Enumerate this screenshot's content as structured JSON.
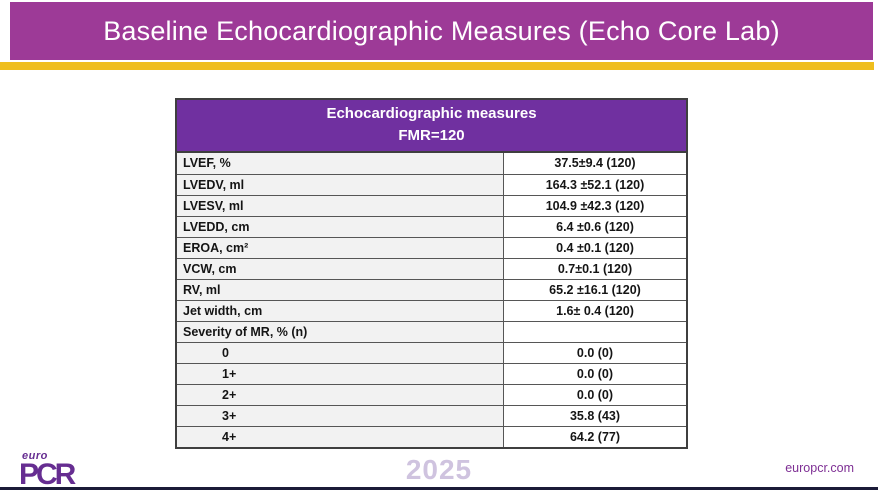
{
  "slide": {
    "title": "Baseline Echocardiographic Measures (Echo Core Lab)",
    "accent_colors": {
      "title_bar_purple": "#9D3A97",
      "table_header_purple": "#7030A0",
      "gold_bar": "#EFBE1E",
      "logo_purple": "#662D91",
      "bottom_rule_navy": "#1B1B38"
    }
  },
  "table": {
    "header_line1": "Echocardiographic measures",
    "header_line2": "FMR=120",
    "rows": [
      {
        "label": "LVEF,  %",
        "value": "37.5±9.4 (120)",
        "indent": false
      },
      {
        "label": "LVEDV, ml",
        "value": "164.3 ±52.1 (120)",
        "indent": false
      },
      {
        "label": "LVESV, ml",
        "value": "104.9 ±42.3 (120)",
        "indent": false
      },
      {
        "label": "LVEDD, cm",
        "value": "6.4 ±0.6 (120)",
        "indent": false
      },
      {
        "label": "EROA, cm²",
        "value": "0.4 ±0.1 (120)",
        "indent": false
      },
      {
        "label": "VCW,  cm",
        "value": "0.7±0.1 (120)",
        "indent": false
      },
      {
        "label": "RV, ml",
        "value": "65.2 ±16.1 (120)",
        "indent": false
      },
      {
        "label": "Jet width, cm",
        "value": "1.6± 0.4 (120)",
        "indent": false
      },
      {
        "label": "Severity of MR, % (n)",
        "value": "",
        "indent": false
      },
      {
        "label": "0",
        "value": "0.0 (0)",
        "indent": true
      },
      {
        "label": "1+",
        "value": "0.0 (0)",
        "indent": true
      },
      {
        "label": "2+",
        "value": "0.0 (0)",
        "indent": true
      },
      {
        "label": "3+",
        "value": "35.8 (43)",
        "indent": true
      },
      {
        "label": "4+",
        "value": "64.2 (77)",
        "indent": true
      }
    ]
  },
  "footer": {
    "logo_top": "euro",
    "logo_main": "PCR",
    "year": "2025",
    "site": "europcr.com"
  }
}
